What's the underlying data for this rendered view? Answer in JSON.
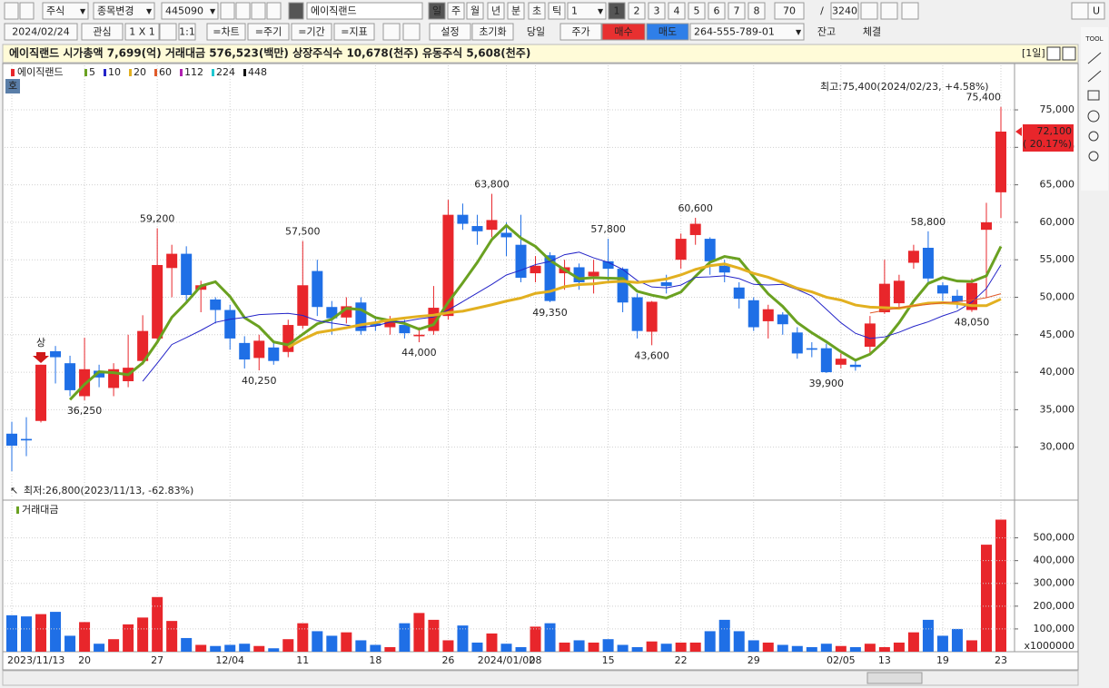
{
  "toolbar": {
    "row1": [
      "주식",
      "종목변경",
      "445090",
      "에이직랜드",
      "일",
      "주",
      "월",
      "년",
      "분",
      "초",
      "틱",
      "1",
      "1",
      "2",
      "3",
      "4",
      "5",
      "6",
      "7",
      "8",
      "70",
      "/",
      "3240",
      "U"
    ],
    "row2": [
      "2024/02/24",
      "관심",
      "1 X 1",
      "1:1",
      "=차트",
      "=주기",
      "=기간",
      "=지표",
      "설정",
      "초기화",
      "당일",
      "주가",
      "매수",
      "매도",
      "264-555-789-01",
      "잔고",
      "체결"
    ]
  },
  "info_bar": {
    "text": "에이직랜드  시가총액 7,699(억)  거래대금 576,523(백만)  상장주식수 10,678(천주)  유동주식 5,608(천주)",
    "period": "[1일]"
  },
  "side_tools": {
    "label": "TOOL"
  },
  "chart_data": [
    {
      "type": "candlestick",
      "name": "에이직랜드",
      "badge": "호",
      "up_color": "#e8262b",
      "down_color": "#1f6fe6",
      "categories": [
        "2023/11/13",
        null,
        null,
        null,
        null,
        "20",
        null,
        null,
        null,
        null,
        "27",
        null,
        null,
        null,
        null,
        "12/04",
        null,
        null,
        null,
        null,
        "11",
        null,
        null,
        null,
        null,
        "18",
        null,
        null,
        null,
        null,
        "26",
        null,
        null,
        null,
        "2024/01/02",
        null,
        "08",
        null,
        null,
        null,
        null,
        "15",
        null,
        null,
        null,
        null,
        "22",
        null,
        null,
        null,
        null,
        "29",
        null,
        null,
        null,
        null,
        null,
        "02/05",
        null,
        null,
        "13",
        null,
        null,
        null,
        "19",
        null,
        null,
        null,
        "23"
      ],
      "open": [
        31800,
        31100,
        33500,
        42800,
        41200,
        36800,
        40200,
        37900,
        38800,
        41500,
        44500,
        53900,
        55800,
        51000,
        49700,
        48300,
        43900,
        41900,
        43300,
        42700,
        46200,
        53500,
        48700,
        47300,
        49300,
        46500,
        46000,
        46300,
        44800,
        45500,
        47500,
        61000,
        59500,
        59000,
        58600,
        57000,
        53200,
        55600,
        53200,
        54000,
        52800,
        54800,
        53800,
        50000,
        45400,
        52000,
        55000,
        58300,
        57800,
        54200,
        51300,
        49600,
        46800,
        47700,
        45300,
        43200,
        43200,
        41000,
        41000,
        43400,
        48000,
        49200,
        54600,
        56600,
        51600,
        50200,
        48300,
        59000,
        64000
      ],
      "high": [
        33400,
        34000,
        41000,
        43500,
        42200,
        44600,
        41000,
        41200,
        45000,
        47600,
        59200,
        57000,
        56800,
        52200,
        50000,
        49000,
        44800,
        45000,
        44000,
        47000,
        57500,
        55000,
        49500,
        50000,
        50000,
        47500,
        47500,
        47000,
        46000,
        51500,
        63000,
        62500,
        61000,
        63800,
        60000,
        61000,
        55500,
        56000,
        55000,
        54500,
        55000,
        57800,
        54000,
        50500,
        49500,
        53000,
        58500,
        60600,
        58000,
        55000,
        52000,
        50000,
        49000,
        48000,
        46000,
        44000,
        43800,
        42500,
        41500,
        47500,
        55000,
        53000,
        57000,
        58800,
        52000,
        51000,
        52500,
        62600,
        75400
      ],
      "low": [
        26800,
        28800,
        33300,
        38500,
        36800,
        36250,
        38000,
        36800,
        38000,
        41000,
        44200,
        50000,
        49500,
        48000,
        46500,
        43000,
        40500,
        40250,
        41000,
        42000,
        45800,
        47500,
        45000,
        46500,
        45000,
        45500,
        45000,
        44500,
        44000,
        45000,
        47000,
        59000,
        57000,
        58000,
        55500,
        52000,
        52000,
        49350,
        51000,
        51000,
        50500,
        52000,
        48000,
        44500,
        43600,
        50500,
        53800,
        57000,
        53000,
        52000,
        48500,
        45500,
        44500,
        45000,
        41800,
        42000,
        39900,
        40500,
        40200,
        42500,
        47800,
        48500,
        53800,
        52000,
        49500,
        48500,
        48050,
        50000,
        60600
      ],
      "close": [
        30200,
        30900,
        41000,
        42000,
        37600,
        40400,
        39300,
        40400,
        40600,
        45500,
        54300,
        55800,
        50300,
        51600,
        48300,
        44500,
        41700,
        44200,
        41500,
        46300,
        51600,
        48700,
        47200,
        48800,
        45500,
        46200,
        46800,
        45200,
        45000,
        48600,
        61000,
        59800,
        58800,
        60300,
        58000,
        52600,
        54200,
        49500,
        54000,
        52000,
        53400,
        53800,
        49300,
        45500,
        49400,
        51500,
        57800,
        59800,
        54800,
        53300,
        49800,
        46000,
        48400,
        46400,
        42500,
        43000,
        40000,
        41800,
        40700,
        46500,
        51800,
        52200,
        56200,
        52500,
        50500,
        49400,
        51900,
        60000,
        72100
      ],
      "moving_averages": [
        {
          "period": 5,
          "color": "#6aa121"
        },
        {
          "period": 10,
          "color": "#2424c8"
        },
        {
          "period": 20,
          "color": "#e2b020"
        },
        {
          "period": 60,
          "color": "#e05a2a"
        },
        {
          "period": 112,
          "color": "#b020b0"
        },
        {
          "period": 224,
          "color": "#20c8d0"
        },
        {
          "period": 448,
          "color": "#111111"
        }
      ],
      "ylim": [
        23300,
        79000
      ],
      "yticks": [
        {
          "value": 30000,
          "label": "30,000"
        },
        {
          "value": 35000,
          "label": "35,000"
        },
        {
          "value": 40000,
          "label": "40,000"
        },
        {
          "value": 45000,
          "label": "45,000"
        },
        {
          "value": 50000,
          "label": "50,000"
        },
        {
          "value": 55000,
          "label": "55,000"
        },
        {
          "value": 60000,
          "label": "60,000"
        },
        {
          "value": 65000,
          "label": "65,000"
        },
        {
          "value": 70000,
          "label": "70,000"
        },
        {
          "value": 75000,
          "label": "75,000"
        }
      ],
      "grid": true,
      "annotations": [
        {
          "value": 59200,
          "label": "59,200",
          "at": "high"
        },
        {
          "value": 36250,
          "label": "36,250",
          "at": "low"
        },
        {
          "value": 40250,
          "label": "40,250",
          "at": "low"
        },
        {
          "value": 57500,
          "label": "57,500",
          "at": "high"
        },
        {
          "value": 44000,
          "label": "44,000",
          "at": "low"
        },
        {
          "value": 63800,
          "label": "63,800",
          "at": "high"
        },
        {
          "value": 49350,
          "label": "49,350",
          "at": "low"
        },
        {
          "value": 57800,
          "label": "57,800",
          "at": "high"
        },
        {
          "value": 43600,
          "label": "43,600",
          "at": "low"
        },
        {
          "value": 60600,
          "label": "60,600",
          "at": "high"
        },
        {
          "value": 39900,
          "label": "39,900",
          "at": "low"
        },
        {
          "value": 58800,
          "label": "58,800",
          "at": "high"
        },
        {
          "value": 48050,
          "label": "48,050",
          "at": "low"
        },
        {
          "value": 75400,
          "label": "75,400",
          "at": "high"
        }
      ],
      "high_note": "최고:75,400(2024/02/23, +4.58%)",
      "low_note": "최저:26,800(2023/11/13, -62.83%)",
      "last_price": {
        "value": 72100,
        "label": "72,100",
        "change": "( 20.17%)"
      },
      "limit_mark": "상"
    },
    {
      "type": "bar",
      "title": "거래대금",
      "color": "#6aa121",
      "values": [
        160000,
        155000,
        165000,
        175000,
        70000,
        130000,
        35000,
        55000,
        120000,
        150000,
        240000,
        135000,
        60000,
        30000,
        25000,
        30000,
        35000,
        25000,
        15000,
        55000,
        125000,
        90000,
        70000,
        85000,
        50000,
        30000,
        20000,
        125000,
        170000,
        140000,
        50000,
        115000,
        40000,
        80000,
        35000,
        20000,
        110000,
        125000,
        40000,
        50000,
        40000,
        55000,
        30000,
        20000,
        45000,
        35000,
        40000,
        40000,
        90000,
        140000,
        90000,
        50000,
        40000,
        30000,
        25000,
        20000,
        35000,
        25000,
        20000,
        35000,
        20000,
        40000,
        85000,
        140000,
        70000,
        100000,
        50000,
        470000,
        580000
      ],
      "ylim": [
        0,
        590000
      ],
      "yticks": [
        {
          "value": 100000,
          "label": "100,000"
        },
        {
          "value": 200000,
          "label": "200,000"
        },
        {
          "value": 300000,
          "label": "300,000"
        },
        {
          "value": 400000,
          "label": "400,000"
        },
        {
          "value": 500000,
          "label": "500,000"
        }
      ],
      "unit": "x1000000"
    }
  ]
}
